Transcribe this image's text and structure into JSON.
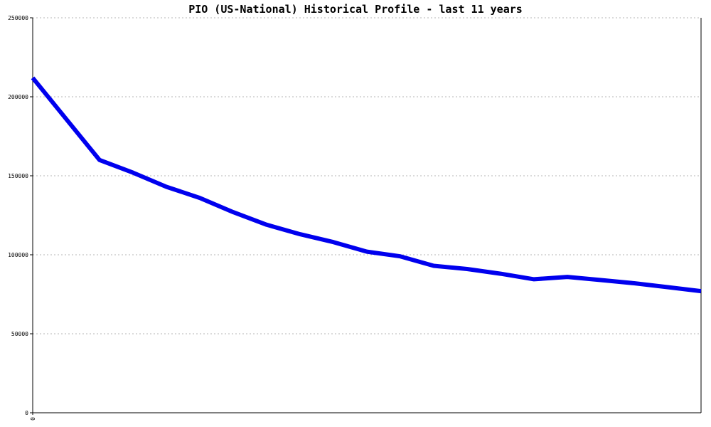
{
  "chart_data": {
    "type": "line",
    "title": "PIO (US-National) Historical Profile - last 11 years",
    "xlabel": "",
    "ylabel": "",
    "ylim": [
      0,
      250000
    ],
    "yticks": [
      0,
      50000,
      100000,
      150000,
      200000,
      250000
    ],
    "ytick_labels": [
      "0",
      "50000",
      "100000",
      "150000",
      "200000",
      "250000"
    ],
    "xtick_labels": [
      "0"
    ],
    "grid": true,
    "legend": "none",
    "series": [
      {
        "color": "#0000ee",
        "values": [
          212000,
          186000,
          160000,
          152000,
          143000,
          136000,
          127000,
          119000,
          113000,
          108000,
          102000,
          99000,
          93000,
          91000,
          88000,
          84500,
          86000,
          84000,
          82000,
          79500,
          77000
        ]
      }
    ]
  }
}
